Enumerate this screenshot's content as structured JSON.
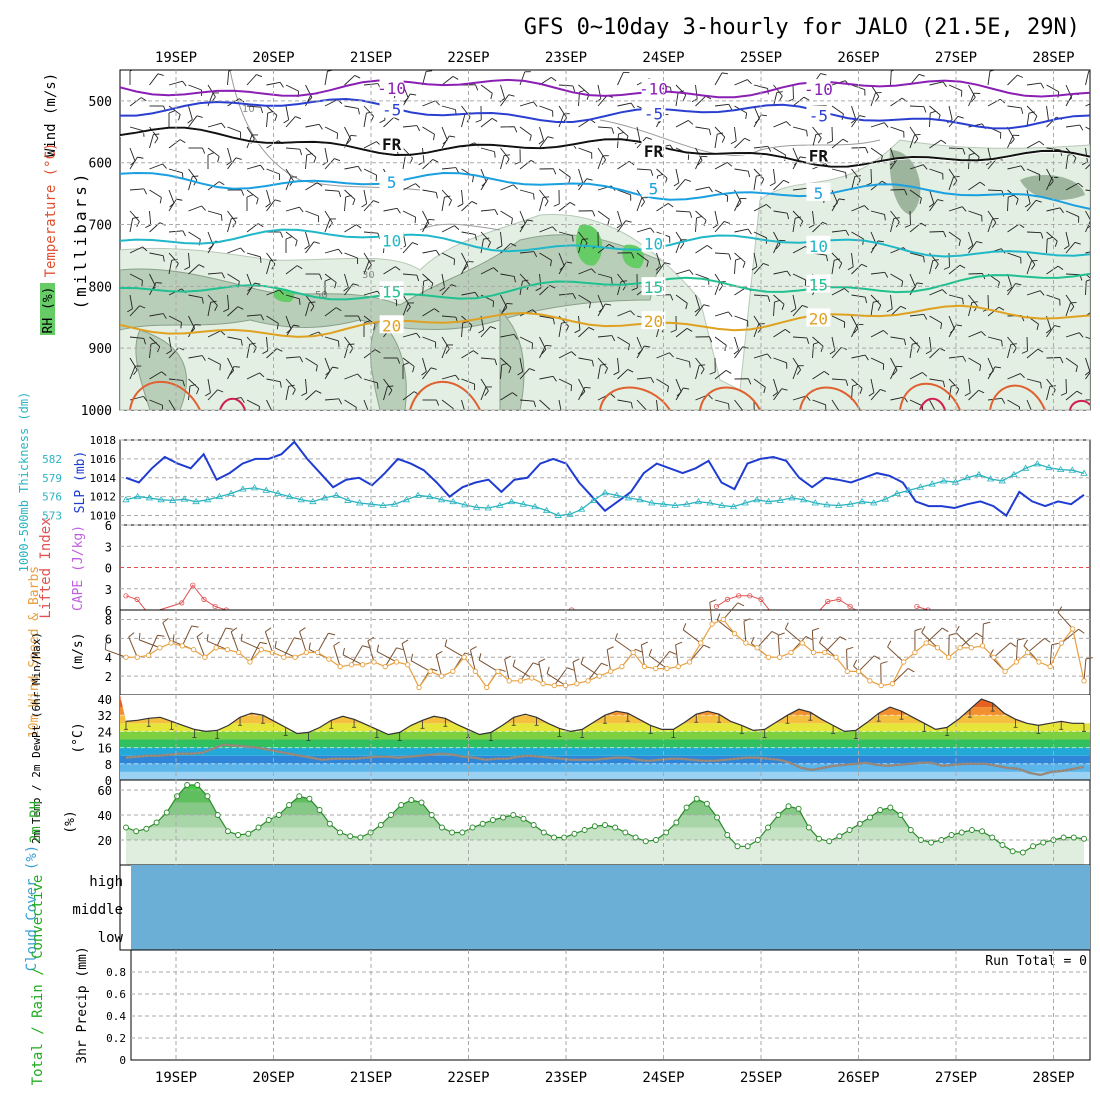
{
  "title": "GFS 0~10day 3-hourly for JALO (21.5E, 29N)",
  "dates": [
    "19SEP",
    "20SEP",
    "21SEP",
    "22SEP",
    "23SEP",
    "24SEP",
    "25SEP",
    "26SEP",
    "27SEP",
    "28SEP"
  ],
  "colors": {
    "grid": "#aaaaaa",
    "slp": "#1e3cd2",
    "thickness": "#2ab4c0",
    "li": "#e05050",
    "cape": "#c060e0",
    "wind10": "#e8a040",
    "barb10": "#7a5030",
    "rh2m_line": "#2a8a2a",
    "rh_fill_light": "#dfeedf",
    "cloud": "#6baed6"
  },
  "chart_data": [
    {
      "id": "upper-air",
      "type": "contour",
      "ylabel": "(millibars)",
      "side_labels": [
        "Wind (m/s)",
        "Temperature (°C)",
        "RH (%)"
      ],
      "ylim": [
        450,
        1000
      ],
      "yticks": [
        500,
        600,
        700,
        800,
        900,
        1000
      ],
      "temperature_contours": [
        {
          "value": -10,
          "label": "-10",
          "color": "#8a1fb4",
          "pressure_start": 478,
          "pressure_end": 482
        },
        {
          "value": -5,
          "label": "-5",
          "color": "#2a3fd0",
          "pressure_start": 508,
          "pressure_end": 530
        },
        {
          "value": 0,
          "label": "FR",
          "color": "#111111",
          "pressure_start": 558,
          "pressure_end": 600
        },
        {
          "value": 5,
          "label": "5",
          "color": "#1a9fe0",
          "pressure_start": 620,
          "pressure_end": 660
        },
        {
          "value": 10,
          "label": "10",
          "color": "#20b8c8",
          "pressure_start": 720,
          "pressure_end": 740
        },
        {
          "value": 15,
          "label": "15",
          "color": "#20c090",
          "pressure_start": 815,
          "pressure_end": 790
        },
        {
          "value": 20,
          "label": "20",
          "color": "#e0a020",
          "pressure_start": 870,
          "pressure_end": 845
        }
      ],
      "rh_contours": [
        "10",
        "30",
        "50"
      ]
    },
    {
      "id": "slp-thickness",
      "type": "line",
      "left_label": "1000-500mb Thickness (dm)",
      "right_label": "SLP (mb)",
      "thickness_ticks": [
        573,
        576,
        579,
        582
      ],
      "slp_ticks": [
        1010,
        1012,
        1014,
        1016,
        1018
      ],
      "slp_ylim": [
        1009,
        1018
      ],
      "series": [
        {
          "name": "SLP",
          "unit": "mb",
          "values": [
            1014.0,
            1013.5,
            1015.0,
            1016.2,
            1015.5,
            1015.0,
            1016.5,
            1013.8,
            1014.5,
            1015.5,
            1016.0,
            1016.0,
            1016.5,
            1017.8,
            1016.0,
            1014.5,
            1013.0,
            1013.8,
            1014.0,
            1013.2,
            1014.5,
            1016.0,
            1015.5,
            1014.8,
            1013.5,
            1012.0,
            1013.0,
            1013.5,
            1013.8,
            1012.5,
            1013.8,
            1014.0,
            1015.5,
            1016.0,
            1015.5,
            1013.5,
            1012.0,
            1010.5,
            1011.5,
            1012.5,
            1014.5,
            1015.5,
            1015.0,
            1014.5,
            1015.0,
            1015.8,
            1013.5,
            1012.8,
            1015.5,
            1016.0,
            1016.2,
            1015.8,
            1014.0,
            1013.0,
            1014.0,
            1013.8,
            1013.5,
            1014.0,
            1014.5,
            1014.2,
            1013.5,
            1011.5,
            1011.0,
            1011.0,
            1010.8,
            1011.2,
            1011.5,
            1011.0,
            1010.0,
            1012.5,
            1011.5,
            1011.0,
            1011.5,
            1011.2,
            1012.2
          ]
        },
        {
          "name": "Thickness",
          "unit": "dm",
          "values": [
            575.5,
            576.0,
            575.8,
            575.5,
            575.4,
            575.6,
            575.2,
            575.5,
            576.0,
            576.5,
            577.2,
            577.4,
            577.0,
            576.5,
            576.0,
            575.5,
            575.2,
            575.8,
            576.2,
            575.4,
            575.0,
            574.8,
            574.6,
            574.8,
            575.5,
            576.2,
            576.0,
            575.5,
            575.2,
            574.7,
            574.3,
            574.2,
            574.6,
            575.2,
            574.8,
            574.4,
            573.8,
            573.0,
            573.2,
            574.0,
            575.4,
            576.6,
            576.2,
            575.8,
            575.5,
            575.0,
            574.8,
            574.6,
            574.8,
            575.2,
            575.0,
            574.6,
            574.4,
            575.0,
            575.5,
            575.2,
            575.4,
            575.8,
            575.5,
            575.0,
            574.7,
            574.6,
            574.8,
            575.2,
            575.0,
            575.6,
            576.5,
            577.0,
            577.5,
            578.0,
            578.5,
            578.3,
            579.0,
            579.5,
            578.8,
            578.5,
            579.5,
            580.5,
            581.2,
            580.6,
            580.3,
            580.2,
            579.7
          ]
        }
      ]
    },
    {
      "id": "li-cape",
      "type": "line",
      "left_label": "Lifted Index",
      "right_label": "CAPE (J/kg)",
      "yticks": [
        -6,
        -3,
        0,
        3,
        6
      ],
      "ylim": [
        -6,
        6
      ],
      "lifted_index_points": [
        [
          0,
          4.0
        ],
        [
          1,
          4.5
        ],
        [
          2,
          6.5
        ],
        [
          5,
          5.0
        ],
        [
          6,
          2.5
        ],
        [
          7,
          4.5
        ],
        [
          8,
          5.5
        ],
        [
          9,
          6.0
        ],
        [
          11,
          6.5
        ],
        [
          40,
          6.0
        ],
        [
          43,
          6.5
        ],
        [
          47,
          6.5
        ],
        [
          53,
          5.5
        ],
        [
          54,
          4.5
        ],
        [
          55,
          4.0
        ],
        [
          56,
          4.0
        ],
        [
          57,
          4.5
        ],
        [
          58,
          6.5
        ],
        [
          62,
          6.5
        ],
        [
          63,
          4.8
        ],
        [
          64,
          4.5
        ],
        [
          65,
          5.5
        ],
        [
          66,
          6.5
        ],
        [
          71,
          5.5
        ],
        [
          72,
          6.0
        ]
      ],
      "cape_values": "0"
    },
    {
      "id": "wind10m",
      "type": "line",
      "left_label": "10m Wind Speed & Barbs",
      "right_label": "(m/s)",
      "yticks": [
        2,
        4,
        6,
        8
      ],
      "ylim": [
        0,
        9
      ],
      "series": [
        {
          "name": "10m wind speed",
          "unit": "m/s",
          "values": [
            4.0,
            4.0,
            4.2,
            5.0,
            5.5,
            5.2,
            4.8,
            4.0,
            5.0,
            4.8,
            4.5,
            3.5,
            4.8,
            4.5,
            4.0,
            4.0,
            4.5,
            4.5,
            3.8,
            3.0,
            3.2,
            3.2,
            3.5,
            3.0,
            3.5,
            3.2,
            0.8,
            2.5,
            2.0,
            2.5,
            4.0,
            2.5,
            0.8,
            2.5,
            1.5,
            1.5,
            1.8,
            1.2,
            1.0,
            1.0,
            1.2,
            1.5,
            2.0,
            2.5,
            3.0,
            4.5,
            3.0,
            2.8,
            2.8,
            3.0,
            3.5,
            5.5,
            7.5,
            8.0,
            6.5,
            5.5,
            5.0,
            4.0,
            4.0,
            4.5,
            5.5,
            4.5,
            4.5,
            4.0,
            2.5,
            2.5,
            1.5,
            1.0,
            1.2,
            3.5,
            4.5,
            5.5,
            5.0,
            4.0,
            5.0,
            5.0,
            5.2,
            4.0,
            2.5,
            3.5,
            4.5,
            3.5,
            3.0,
            5.5,
            7.0,
            1.5
          ]
        }
      ]
    },
    {
      "id": "temp2m",
      "type": "area",
      "left_label": "2m Temp / 2m DewPt (6hr Min/Max)",
      "right_label": "(°C)",
      "yticks": [
        0,
        8,
        16,
        24,
        32,
        40
      ],
      "ylim": [
        0,
        42
      ],
      "series": [
        {
          "name": "2m Temp",
          "unit": "°C",
          "values": [
            29,
            29.5,
            30.5,
            31,
            29,
            27,
            25,
            24,
            24.5,
            27,
            31,
            33,
            32,
            29,
            26,
            23,
            23.5,
            26,
            29.5,
            31.5,
            30,
            27.5,
            25,
            22.5,
            23.5,
            27,
            29.5,
            31.5,
            30.5,
            27.5,
            25,
            22.5,
            23.5,
            27,
            31,
            32.5,
            31,
            28,
            25.5,
            24,
            25,
            28.5,
            32,
            34,
            33,
            30,
            27,
            25,
            25,
            28.5,
            32.5,
            34,
            32.5,
            29,
            27,
            24.5,
            25,
            28.5,
            32,
            35,
            33.5,
            30,
            27,
            24,
            24.5,
            28.5,
            33,
            36,
            34,
            31,
            28,
            25,
            26,
            30,
            35,
            40,
            38,
            33,
            30,
            28,
            27,
            28,
            29,
            28,
            28
          ]
        },
        {
          "name": "2m DewPt",
          "unit": "°C",
          "values": [
            11,
            11.5,
            12,
            12,
            12.5,
            13,
            13,
            13.5,
            15.5,
            17.5,
            17,
            16.5,
            16,
            15,
            14,
            13,
            12,
            11,
            10,
            10.5,
            10.5,
            10.5,
            11,
            11.5,
            11.5,
            11,
            11.5,
            12,
            12.5,
            13,
            12.5,
            11.5,
            11,
            10,
            10.5,
            10.5,
            11.5,
            12,
            11.5,
            11,
            10.5,
            10,
            10,
            10,
            10.5,
            11,
            11,
            10,
            9.5,
            10,
            10.5,
            10.5,
            10,
            9.5,
            9.5,
            10,
            10.5,
            11,
            11,
            10.5,
            10,
            8.5,
            6,
            5,
            6,
            7,
            7.5,
            8,
            8.5,
            7.5,
            7,
            7.5,
            8,
            8.5,
            8.5,
            7,
            7.5,
            8,
            8,
            8,
            7,
            6,
            5.5,
            3.5,
            2.5,
            4,
            4.5,
            5.5,
            6.5
          ]
        }
      ]
    },
    {
      "id": "rh2m",
      "type": "area",
      "left_label": "2m RH",
      "right_label": "(%)",
      "yticks": [
        20,
        40,
        60
      ],
      "ylim": [
        0,
        68
      ],
      "series": [
        {
          "name": "2m RH",
          "unit": "%",
          "values": [
            30,
            27,
            29,
            34,
            42,
            55,
            64,
            64,
            55,
            40,
            27,
            24,
            25,
            30,
            36,
            40,
            48,
            55,
            53,
            44,
            33,
            26,
            23,
            22,
            26,
            32,
            40,
            48,
            52,
            50,
            40,
            30,
            26,
            26,
            30,
            33,
            36,
            38,
            40,
            37,
            32,
            26,
            22,
            22,
            25,
            28,
            31,
            32,
            30,
            26,
            22,
            19,
            20,
            26,
            34,
            46,
            53,
            49,
            38,
            24,
            15,
            15,
            20,
            30,
            40,
            47,
            45,
            30,
            21,
            19,
            23,
            28,
            33,
            38,
            44,
            46,
            40,
            28,
            20,
            18,
            20,
            24,
            26,
            28,
            27,
            22,
            16,
            11,
            10,
            15,
            18,
            20,
            22,
            22,
            21
          ]
        }
      ]
    },
    {
      "id": "cloud",
      "type": "heatmap",
      "left_label": "Cloud Cover (%)",
      "levels": [
        "high",
        "middle",
        "low"
      ]
    },
    {
      "id": "precip",
      "type": "bar",
      "left_label": "Total / Rain / Convective",
      "right_label": "3hr Precip (mm)",
      "yticks": [
        0,
        0.2,
        0.4,
        0.6,
        0.8
      ],
      "ylim": [
        0,
        1.0
      ],
      "values": [],
      "run_total": "Run Total = 0"
    }
  ]
}
